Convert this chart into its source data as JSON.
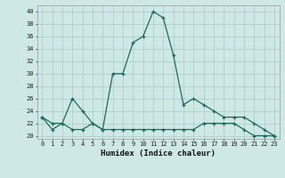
{
  "xlabel": "Humidex (Indice chaleur)",
  "x": [
    0,
    1,
    2,
    3,
    4,
    5,
    6,
    7,
    8,
    9,
    10,
    11,
    12,
    13,
    14,
    15,
    16,
    17,
    18,
    19,
    20,
    21,
    22,
    23
  ],
  "curve_upper": [
    23,
    21,
    22,
    26,
    24,
    22,
    21,
    30,
    30,
    35,
    36,
    40,
    39,
    33,
    25,
    26,
    25,
    24,
    23,
    23,
    23,
    22,
    21,
    20
  ],
  "curve_lower": [
    23,
    22,
    22,
    21,
    21,
    22,
    21,
    21,
    21,
    21,
    21,
    21,
    21,
    21,
    21,
    21,
    22,
    22,
    22,
    22,
    21,
    20,
    20,
    20
  ],
  "ylim_min": 19.5,
  "ylim_max": 41.0,
  "xlim_min": -0.5,
  "xlim_max": 23.5,
  "yticks": [
    20,
    22,
    24,
    26,
    28,
    30,
    32,
    34,
    36,
    38,
    40
  ],
  "xticks": [
    0,
    1,
    2,
    3,
    4,
    5,
    6,
    7,
    8,
    9,
    10,
    11,
    12,
    13,
    14,
    15,
    16,
    17,
    18,
    19,
    20,
    21,
    22,
    23
  ],
  "line_color": "#1e6b5e",
  "bg_color": "#cde8e5",
  "grid_color": "#b0d0cc"
}
